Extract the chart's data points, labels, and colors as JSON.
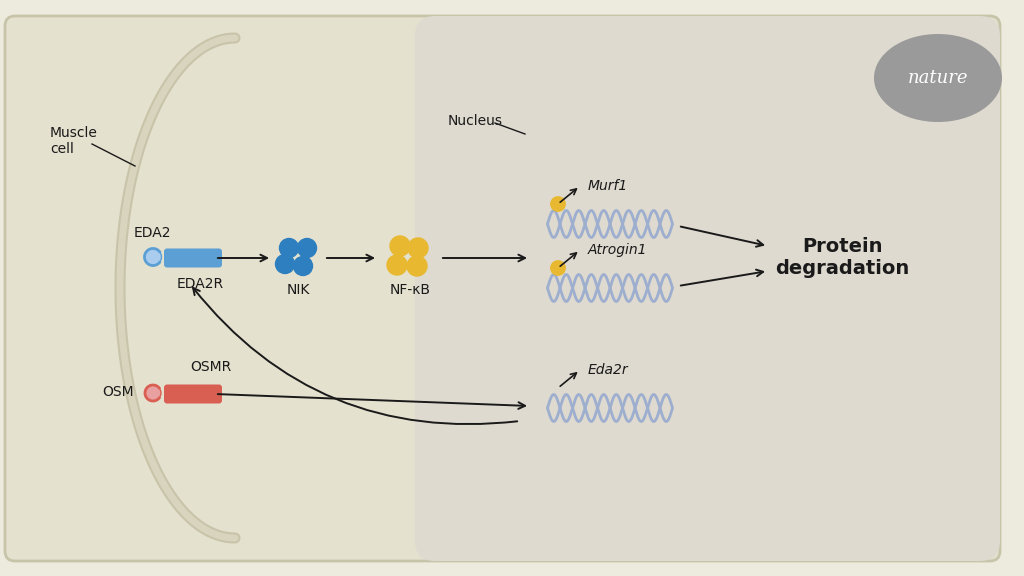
{
  "bg_color": "#edeade",
  "cell_bg": "#e5e1cf",
  "nucleus_bg": "#dedad0",
  "nature_circle_color": "#9a9a9a",
  "nature_text": "nature",
  "labels": {
    "muscle_cell": "Muscle\ncell",
    "eda2": "EDA2",
    "eda2r": "EDA2R",
    "nik": "NIK",
    "nfkb": "NF-κB",
    "nucleus": "Nucleus",
    "murf1": "Murf1",
    "atrogin1": "Atrogin1",
    "eda2r_gene": "Eda2r",
    "protein_deg": "Protein\ndegradation",
    "osm": "OSM",
    "osmr": "OSMR"
  },
  "blue_receptor_color": "#5b9fd4",
  "blue_receptor_light": "#aaccee",
  "red_receptor_color": "#d95f52",
  "red_receptor_light": "#e8a0a0",
  "nik_dot_color": "#2e7fbf",
  "nfkb_dot_color": "#e8b830",
  "dna_color": "#9daecf",
  "promoter_color": "#e8b830",
  "arrow_color": "#1a1a1a",
  "text_color": "#1a1a1a",
  "cell_border_color": "#c8c4aa"
}
